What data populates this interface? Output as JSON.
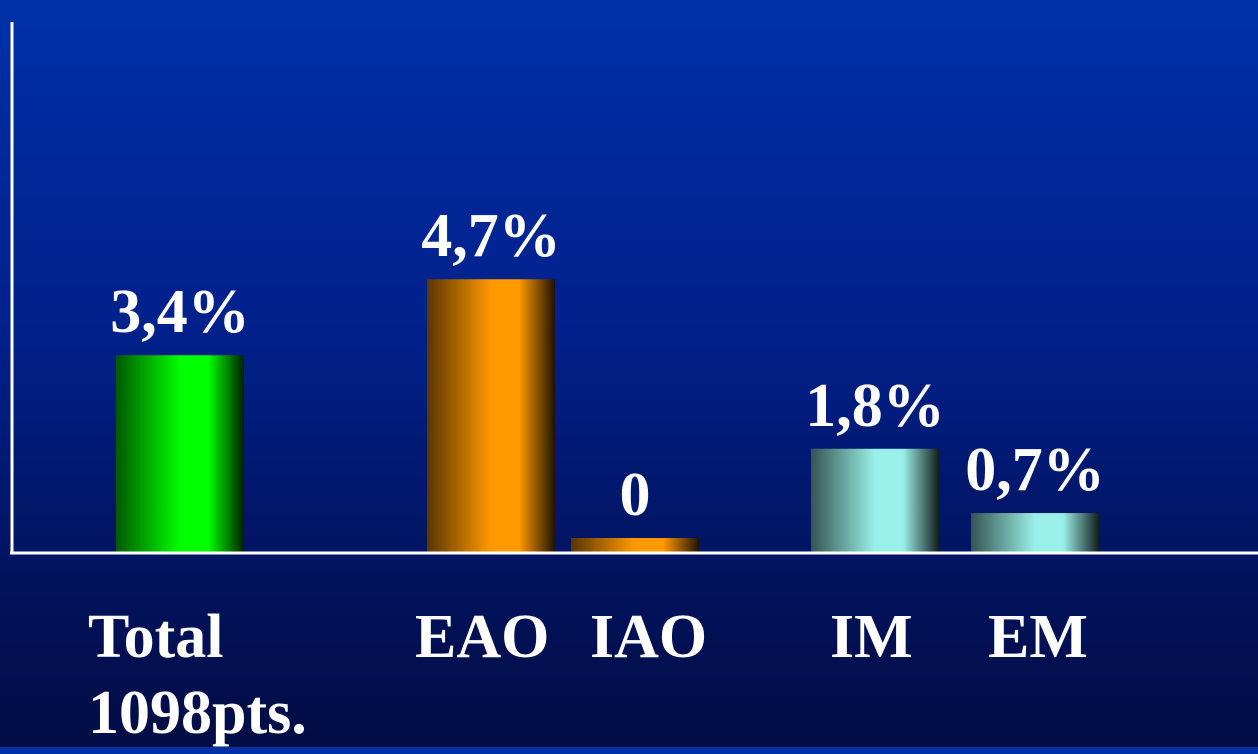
{
  "colors": {
    "background_top": "#0030a8",
    "background_bottom": "#020d44",
    "axis": "#ffffff",
    "label_text": "#ffffff"
  },
  "chart_data": {
    "type": "bar",
    "categories": [
      "Total\n1098pts.",
      "EAO",
      "IAO",
      "IM",
      "EM"
    ],
    "category_lines": [
      [
        "Total",
        "1098pts."
      ],
      [
        "EAO"
      ],
      [
        "IAO"
      ],
      [
        "IM"
      ],
      [
        "EM"
      ]
    ],
    "values": [
      3.4,
      4.7,
      0,
      1.8,
      0.7
    ],
    "value_labels": [
      "3,4%",
      "4,7%",
      "0",
      "1,8%",
      "0,7%"
    ],
    "bar_colors": [
      "#00ff00",
      "#ff9900",
      "#ff9900",
      "#99f0e8",
      "#99f0e8"
    ],
    "title": "",
    "xlabel": "",
    "ylabel": "",
    "ylim": [
      0,
      9.1
    ],
    "grid": false,
    "legend": "none"
  }
}
